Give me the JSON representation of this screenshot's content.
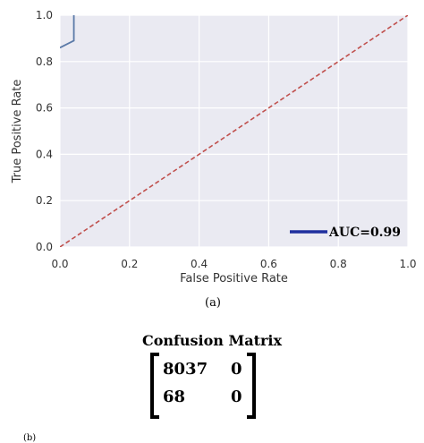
{
  "chart_data": {
    "type": "line",
    "xlabel": "False Positive Rate",
    "ylabel": "True Positive Rate",
    "xlim": [
      0.0,
      1.0
    ],
    "ylim": [
      0.0,
      1.0
    ],
    "x_ticks": [
      "0.0",
      "0.2",
      "0.4",
      "0.6",
      "0.8",
      "1.0"
    ],
    "y_ticks": [
      "0.0",
      "0.2",
      "0.4",
      "0.6",
      "0.8",
      "1.0"
    ],
    "grid": true,
    "legend": {
      "label": "AUC=0.99",
      "placement": "bottom-right"
    },
    "series": [
      {
        "kind": "roc",
        "x": [
          0.0,
          0.04,
          0.04,
          0.04
        ],
        "y": [
          0.86,
          0.89,
          1.0,
          1.0
        ],
        "color": "#5b7aa8"
      },
      {
        "kind": "diagonal",
        "x": [
          0.0,
          1.0
        ],
        "y": [
          0.0,
          1.0
        ],
        "color": "#c0504d",
        "style": "dashed"
      }
    ],
    "legend_line_color": "#1f2f9e",
    "background": "#eaeaf2"
  },
  "captions": {
    "a": "(a)",
    "b": "(b)"
  },
  "confusion_matrix": {
    "title": "Confusion Matrix",
    "rows": [
      [
        "8037",
        "0"
      ],
      [
        "68",
        "0"
      ]
    ]
  }
}
